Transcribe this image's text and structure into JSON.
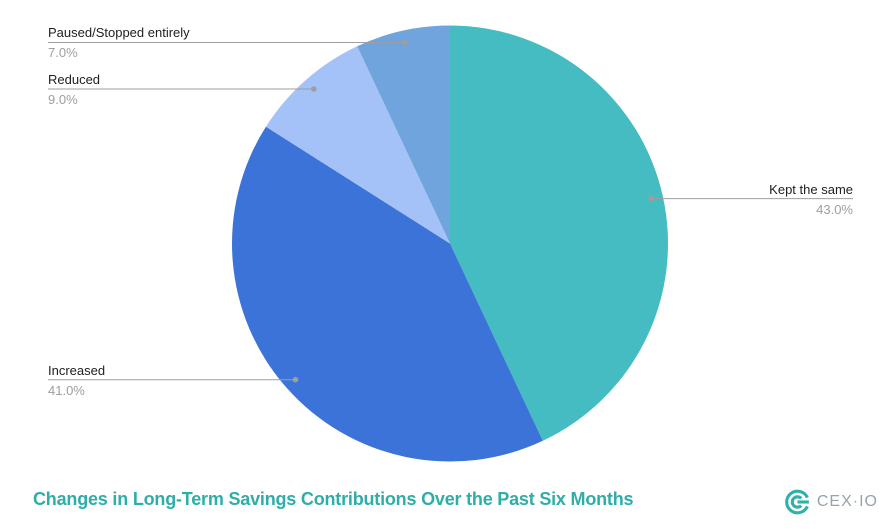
{
  "chart_data": {
    "type": "pie",
    "title": "Changes in Long-Term Savings Contributions Over the Past Six Months",
    "title_color": "#2FADA9",
    "direction": "clockwise",
    "start_angle_deg": 0,
    "legend_position": "none",
    "slices": [
      {
        "label": "Kept the same",
        "value": 43.0,
        "percent_label": "43.0%",
        "color": "#45BCC2",
        "label_side": "right"
      },
      {
        "label": "Increased",
        "value": 41.0,
        "percent_label": "41.0%",
        "color": "#3C73D8",
        "label_side": "left"
      },
      {
        "label": "Reduced",
        "value": 9.0,
        "percent_label": "9.0%",
        "color": "#A4C2F7",
        "label_side": "left"
      },
      {
        "label": "Paused/Stopped entirely",
        "value": 7.0,
        "percent_label": "7.0%",
        "color": "#6FA4DC",
        "label_side": "left"
      }
    ],
    "label_text_color": "#212121",
    "percent_text_color": "#9E9E9E",
    "leader_line_color": "#9E9E9E"
  },
  "footer": {
    "logo": {
      "text": "CEX·IO",
      "mark_color": "#2FB0AB",
      "text_color": "#98A2AB"
    }
  }
}
